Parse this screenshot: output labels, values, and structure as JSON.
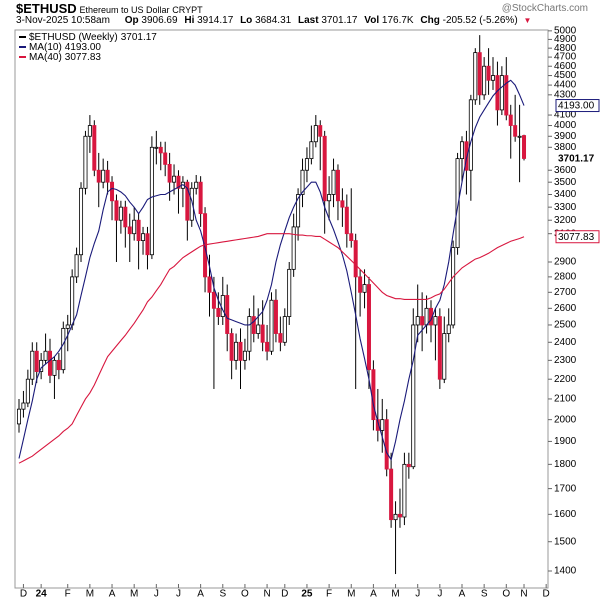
{
  "header": {
    "symbol": "$ETHUSD",
    "description": "Ethereum to US Dollar",
    "exchange": "CRYPT",
    "source": "@StockCharts.com",
    "date": "3-Nov-2025 10:58am",
    "labels": [
      "Op",
      "Hi",
      "Lo",
      "Last",
      "Vol",
      "Chg"
    ],
    "vol": "176.7K",
    "chg": "-205.52 (-5.26%)"
  },
  "chart_data": {
    "type": "candlestick",
    "log_scale": true,
    "grid": false,
    "categories": [
      null,
      "D",
      null,
      null,
      null,
      "24",
      null,
      null,
      null,
      null,
      null,
      "F",
      null,
      null,
      null,
      null,
      "M",
      null,
      null,
      null,
      null,
      "A",
      null,
      null,
      null,
      null,
      "M",
      null,
      null,
      null,
      null,
      "J",
      null,
      null,
      null,
      null,
      "J",
      null,
      null,
      null,
      null,
      "A",
      null,
      null,
      null,
      null,
      "S",
      null,
      null,
      null,
      null,
      "O",
      null,
      null,
      null,
      null,
      "N",
      null,
      null,
      null,
      "D",
      null,
      null,
      null,
      null,
      "25",
      null,
      null,
      null,
      null,
      "F",
      null,
      null,
      null,
      null,
      "M",
      null,
      null,
      null,
      null,
      "A",
      null,
      null,
      null,
      null,
      "M",
      null,
      null,
      null,
      null,
      "J",
      null,
      null,
      null,
      null,
      "J",
      null,
      null,
      null,
      null,
      "A",
      null,
      null,
      null,
      null,
      "S",
      null,
      null,
      null,
      null,
      "O",
      null,
      null,
      null,
      "N",
      null,
      null,
      null,
      null,
      "D"
    ],
    "ylim": [
      1345,
      5010
    ],
    "yticks": [
      1400,
      1500,
      1600,
      1700,
      1800,
      1900,
      2000,
      2100,
      2200,
      2300,
      2400,
      2500,
      2600,
      2700,
      2800,
      2900,
      3100,
      3200,
      3300,
      3400,
      3500,
      3600,
      3800,
      3900,
      4000,
      4100,
      4300,
      4400,
      4500,
      4600,
      4700,
      4800,
      4900,
      5000
    ],
    "series": [
      {
        "name": "$ETHUSD (Weekly)",
        "up_color": "#ffffff",
        "down_color": "#d8173f",
        "color": "#000000",
        "values": [
          [
            1980,
            2100,
            1940,
            2050
          ],
          [
            2050,
            2140,
            2010,
            2080
          ],
          [
            2080,
            2250,
            2060,
            2200
          ],
          [
            2200,
            2400,
            2170,
            2350
          ],
          [
            2350,
            2400,
            2180,
            2240
          ],
          [
            2240,
            2340,
            2200,
            2300
          ],
          [
            2300,
            2450,
            2280,
            2350
          ],
          [
            2350,
            2420,
            2180,
            2220
          ],
          [
            2220,
            2320,
            2100,
            2300
          ],
          [
            2300,
            2340,
            2200,
            2250
          ],
          [
            2250,
            2520,
            2230,
            2480
          ],
          [
            2480,
            2560,
            2350,
            2500
          ],
          [
            2500,
            2850,
            2470,
            2800
          ],
          [
            2800,
            3000,
            2760,
            2950
          ],
          [
            2950,
            3500,
            2900,
            3450
          ],
          [
            3450,
            3950,
            3400,
            3900
          ],
          [
            3900,
            4100,
            3750,
            4000
          ],
          [
            4000,
            4050,
            3550,
            3600
          ],
          [
            3600,
            3750,
            3300,
            3500
          ],
          [
            3500,
            3700,
            3450,
            3600
          ],
          [
            3600,
            3680,
            3400,
            3500
          ],
          [
            3500,
            3550,
            3200,
            3350
          ],
          [
            3350,
            3400,
            2900,
            3200
          ],
          [
            3200,
            3350,
            3100,
            3300
          ],
          [
            3300,
            3350,
            3000,
            3150
          ],
          [
            3150,
            3250,
            2900,
            3100
          ],
          [
            3100,
            3300,
            3050,
            3200
          ],
          [
            3200,
            3250,
            2850,
            3050
          ],
          [
            3050,
            3150,
            2950,
            3100
          ],
          [
            3100,
            3150,
            2850,
            2950
          ],
          [
            2950,
            3900,
            2920,
            3800
          ],
          [
            3800,
            3950,
            3650,
            3800
          ],
          [
            3800,
            3850,
            3600,
            3750
          ],
          [
            3750,
            3850,
            3550,
            3650
          ],
          [
            3650,
            3750,
            3350,
            3500
          ],
          [
            3500,
            3650,
            3400,
            3550
          ],
          [
            3550,
            3600,
            3250,
            3450
          ],
          [
            3450,
            3550,
            3300,
            3500
          ],
          [
            3500,
            3520,
            3050,
            3200
          ],
          [
            3200,
            3500,
            3150,
            3450
          ],
          [
            3450,
            3560,
            3400,
            3500
          ],
          [
            3500,
            3550,
            3150,
            3250
          ],
          [
            3250,
            3300,
            2700,
            2800
          ],
          [
            2800,
            2950,
            2550,
            2700
          ],
          [
            2700,
            2800,
            2150,
            2600
          ],
          [
            2600,
            2700,
            2500,
            2550
          ],
          [
            2550,
            2800,
            2500,
            2680
          ],
          [
            2680,
            2750,
            2350,
            2450
          ],
          [
            2450,
            2480,
            2200,
            2300
          ],
          [
            2300,
            2450,
            2250,
            2400
          ],
          [
            2400,
            2480,
            2150,
            2300
          ],
          [
            2300,
            2420,
            2250,
            2350
          ],
          [
            2350,
            2600,
            2300,
            2550
          ],
          [
            2550,
            2680,
            2400,
            2450
          ],
          [
            2450,
            2600,
            2420,
            2500
          ],
          [
            2500,
            2650,
            2350,
            2400
          ],
          [
            2400,
            2500,
            2300,
            2350
          ],
          [
            2350,
            2700,
            2330,
            2650
          ],
          [
            2650,
            2720,
            2400,
            2450
          ],
          [
            2450,
            2550,
            2350,
            2400
          ],
          [
            2400,
            2600,
            2380,
            2550
          ],
          [
            2550,
            2900,
            2500,
            2850
          ],
          [
            2850,
            3250,
            2800,
            3150
          ],
          [
            3150,
            3450,
            3050,
            3400
          ],
          [
            3400,
            3700,
            3300,
            3600
          ],
          [
            3600,
            3800,
            3500,
            3700
          ],
          [
            3700,
            4000,
            3650,
            3850
          ],
          [
            3850,
            4100,
            3800,
            4000
          ],
          [
            4000,
            4050,
            3600,
            3900
          ],
          [
            3900,
            3950,
            3100,
            3350
          ],
          [
            3350,
            3550,
            3200,
            3400
          ],
          [
            3400,
            3700,
            3300,
            3600
          ],
          [
            3600,
            3650,
            3200,
            3350
          ],
          [
            3350,
            3450,
            3150,
            3300
          ],
          [
            3300,
            3400,
            3000,
            3100
          ],
          [
            3100,
            3450,
            3000,
            3050
          ],
          [
            3050,
            3100,
            2150,
            2800
          ],
          [
            2800,
            2850,
            2550,
            2700
          ],
          [
            2700,
            2850,
            2600,
            2750
          ],
          [
            2750,
            2800,
            2150,
            2250
          ],
          [
            2250,
            2300,
            1950,
            2000
          ],
          [
            2000,
            2150,
            1900,
            1950
          ],
          [
            1950,
            2100,
            1850,
            2000
          ],
          [
            2000,
            2050,
            1750,
            1780
          ],
          [
            1780,
            1850,
            1550,
            1580
          ],
          [
            1580,
            1650,
            1390,
            1600
          ],
          [
            1600,
            1700,
            1550,
            1590
          ],
          [
            1590,
            1850,
            1560,
            1800
          ],
          [
            1800,
            1850,
            1740,
            1790
          ],
          [
            1790,
            2600,
            1780,
            2500
          ],
          [
            2500,
            2750,
            2400,
            2550
          ],
          [
            2550,
            2700,
            2350,
            2500
          ],
          [
            2500,
            2680,
            2450,
            2600
          ],
          [
            2600,
            2650,
            2400,
            2500
          ],
          [
            2500,
            2600,
            2300,
            2550
          ],
          [
            2550,
            2600,
            2150,
            2200
          ],
          [
            2200,
            2550,
            2180,
            2450
          ],
          [
            2450,
            2600,
            2400,
            2500
          ],
          [
            2500,
            3050,
            2480,
            3000
          ],
          [
            3000,
            3750,
            2950,
            3700
          ],
          [
            3700,
            3900,
            3500,
            3850
          ],
          [
            3850,
            3950,
            3400,
            3600
          ],
          [
            3600,
            4300,
            3350,
            4250
          ],
          [
            4250,
            4800,
            4200,
            4750
          ],
          [
            4750,
            4950,
            4200,
            4300
          ],
          [
            4300,
            4700,
            4250,
            4600
          ],
          [
            4600,
            4800,
            4300,
            4450
          ],
          [
            4450,
            4700,
            4350,
            4500
          ],
          [
            4500,
            4650,
            4000,
            4150
          ],
          [
            4150,
            4600,
            4100,
            4500
          ],
          [
            4500,
            4700,
            4050,
            4100
          ],
          [
            4100,
            4200,
            3700,
            4000
          ],
          [
            4000,
            4300,
            3850,
            3900
          ],
          [
            3900,
            4200,
            3500,
            3900
          ],
          [
            3906.69,
            3914.17,
            3684.31,
            3701.17
          ],
          null,
          null,
          null,
          null,
          null
        ]
      },
      {
        "name": "MA(10)",
        "type": "line",
        "color": "#1a1a7a",
        "last_label": "4193.00",
        "values": [
          1825,
          1910,
          2000,
          2090,
          2200,
          2260,
          2280,
          2300,
          2320,
          2350,
          2390,
          2440,
          2500,
          2560,
          2680,
          2800,
          2930,
          3030,
          3120,
          3280,
          3420,
          3450,
          3440,
          3420,
          3390,
          3340,
          3300,
          3250,
          3300,
          3360,
          3380,
          3390,
          3400,
          3400,
          3420,
          3440,
          3460,
          3480,
          3450,
          3350,
          3200,
          3120,
          3000,
          2870,
          2730,
          2650,
          2590,
          2540,
          2530,
          2520,
          2510,
          2500,
          2500,
          2520,
          2550,
          2580,
          2650,
          2750,
          2900,
          3020,
          3120,
          3220,
          3300,
          3370,
          3420,
          3460,
          3500,
          3500,
          3420,
          3300,
          3210,
          3130,
          3040,
          2950,
          2840,
          2700,
          2560,
          2420,
          2310,
          2200,
          2070,
          1990,
          1920,
          1850,
          1820,
          1900,
          2000,
          2090,
          2200,
          2300,
          2440,
          2470,
          2500,
          2530,
          2600,
          2650,
          2750,
          2900,
          3100,
          3300,
          3500,
          3700,
          3850,
          3980,
          4080,
          4150,
          4220,
          4290,
          4340,
          4380,
          4420,
          4450,
          4400,
          4300,
          4193,
          null,
          null,
          null,
          null,
          null
        ]
      },
      {
        "name": "MA(40)",
        "type": "line",
        "color": "#d8173f",
        "values": [
          1805,
          1815,
          1825,
          1835,
          1850,
          1865,
          1880,
          1895,
          1910,
          1925,
          1945,
          1960,
          1980,
          2020,
          2060,
          2100,
          2130,
          2170,
          2220,
          2270,
          2320,
          2350,
          2380,
          2410,
          2440,
          2475,
          2510,
          2550,
          2590,
          2640,
          2670,
          2710,
          2750,
          2800,
          2850,
          2870,
          2900,
          2930,
          2950,
          2970,
          2990,
          3010,
          3020,
          3025,
          3030,
          3035,
          3040,
          3045,
          3050,
          3055,
          3060,
          3065,
          3070,
          3075,
          3080,
          3090,
          3100,
          3100,
          3100,
          3100,
          3100,
          3100,
          3095,
          3090,
          3090,
          3085,
          3085,
          3080,
          3080,
          3060,
          3040,
          3020,
          3000,
          2970,
          2940,
          2910,
          2880,
          2850,
          2820,
          2790,
          2760,
          2730,
          2700,
          2680,
          2670,
          2660,
          2660,
          2655,
          2655,
          2655,
          2655,
          2655,
          2655,
          2665,
          2680,
          2690,
          2720,
          2760,
          2800,
          2830,
          2860,
          2880,
          2900,
          2920,
          2930,
          2945,
          2960,
          2980,
          3000,
          3015,
          3030,
          3045,
          3055,
          3065,
          3077.83,
          null,
          null,
          null,
          null,
          null
        ]
      }
    ]
  }
}
